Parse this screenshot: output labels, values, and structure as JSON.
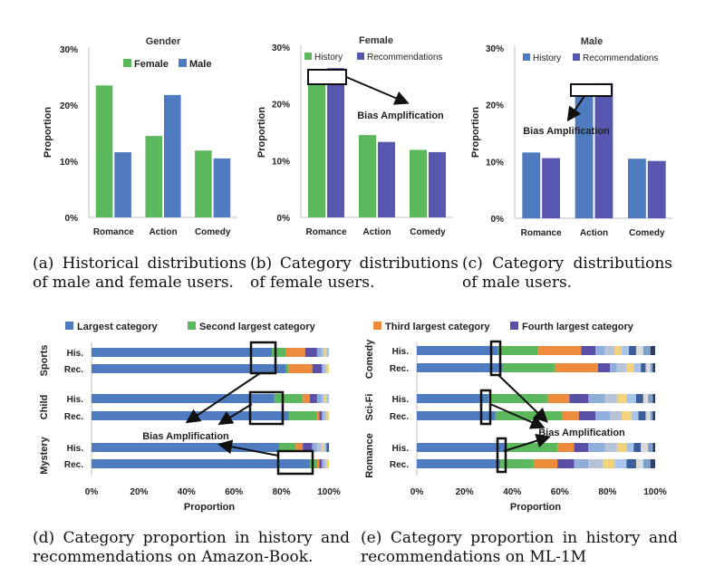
{
  "colors": {
    "female": "#5cb85c",
    "male": "#4f7cc0",
    "history": "#5cb85c",
    "recommendations": "#5857b0",
    "largest": "#4f7cc0",
    "second": "#5cb85c",
    "third": "#ed8a3c",
    "fourth": "#5a4fa6",
    "tail": [
      "#8faedc",
      "#b7c4d8",
      "#f2d27a",
      "#a8c4ea",
      "#3b5e9a",
      "#d9d9d9",
      "#7fa0c8",
      "#2f3f5f"
    ]
  },
  "captions": {
    "a": "(a) Historical distributions of male and female users.",
    "b": "(b) Category distributions of female users.",
    "c": "(c) Category distributions of male users.",
    "d": "(d) Category proportion in history and recommendations on Amazon-Book.",
    "e": "(e) Category proportion in history and recommendations on ML-1M"
  },
  "chart_data": [
    {
      "id": "a",
      "type": "bar",
      "title": "Gender",
      "ylabel": "Proportion",
      "ylim": [
        0,
        30
      ],
      "yticks": [
        "0%",
        "10%",
        "20%",
        "30%"
      ],
      "categories": [
        "Romance",
        "Action",
        "Comedy"
      ],
      "series": [
        {
          "name": "Female",
          "values": [
            23.5,
            14.5,
            11.9
          ]
        },
        {
          "name": "Male",
          "values": [
            11.6,
            21.8,
            10.5
          ]
        }
      ],
      "legend": "top-center"
    },
    {
      "id": "b",
      "type": "bar",
      "title": "Female",
      "ylabel": "Proportion",
      "ylim": [
        0,
        30
      ],
      "yticks": [
        "0%",
        "10%",
        "20%",
        "30%"
      ],
      "categories": [
        "Romance",
        "Action",
        "Comedy"
      ],
      "series": [
        {
          "name": "History",
          "values": [
            23.5,
            14.5,
            11.9
          ]
        },
        {
          "name": "Recommendations",
          "values": [
            26.3,
            13.3,
            11.5
          ]
        }
      ],
      "legend": "top",
      "annotation": "Bias Amplification"
    },
    {
      "id": "c",
      "type": "bar",
      "title": "Male",
      "ylabel": "Proportion",
      "ylim": [
        0,
        30
      ],
      "yticks": [
        "0%",
        "10%",
        "20%",
        "30%"
      ],
      "categories": [
        "Romance",
        "Action",
        "Comedy"
      ],
      "series": [
        {
          "name": "History",
          "values": [
            11.6,
            21.8,
            10.5
          ]
        },
        {
          "name": "Recommendations",
          "values": [
            10.6,
            23.8,
            10.1
          ]
        }
      ],
      "legend": "top",
      "annotation": "Bias Amplification"
    },
    {
      "id": "d",
      "type": "bar",
      "orientation": "horizontal-stacked",
      "xlabel": "Proportion",
      "xlim": [
        0,
        100
      ],
      "xticks": [
        "0%",
        "20%",
        "40%",
        "60%",
        "80%",
        "100%"
      ],
      "legend_entries": [
        "Largest category",
        "Second largest category"
      ],
      "groups": [
        {
          "name": "Sports",
          "rows": [
            {
              "label": "His.",
              "values": [
                76,
                6,
                8,
                5,
                2,
                1,
                1,
                1
              ]
            },
            {
              "label": "Rec.",
              "values": [
                82,
                1,
                10,
                4,
                1,
                1,
                1
              ]
            }
          ]
        },
        {
          "name": "Child",
          "rows": [
            {
              "label": "His.",
              "values": [
                77,
                12,
                3,
                3,
                2,
                1,
                1,
                1
              ]
            },
            {
              "label": "Rec.",
              "values": [
                83,
                12,
                1,
                1,
                1,
                1,
                1
              ]
            }
          ]
        },
        {
          "name": "Mystery",
          "rows": [
            {
              "label": "His.",
              "values": [
                79,
                7,
                3,
                4,
                2,
                2,
                1,
                1,
                1
              ]
            },
            {
              "label": "Rec.",
              "values": [
                92,
                3,
                1,
                1,
                1,
                1,
                1
              ]
            }
          ]
        }
      ],
      "annotation": "Bias Amplification"
    },
    {
      "id": "e",
      "type": "bar",
      "orientation": "horizontal-stacked",
      "xlabel": "Proportion",
      "xlim": [
        0,
        100
      ],
      "xticks": [
        "0%",
        "20%",
        "40%",
        "60%",
        "80%",
        "100%"
      ],
      "legend_entries": [
        "Third largest category",
        "Fourth largest category"
      ],
      "groups": [
        {
          "name": "Comedy",
          "rows": [
            {
              "label": "His.",
              "values": [
                34,
                17,
                18,
                6,
                4,
                4,
                3,
                3,
                3,
                3,
                3,
                2
              ]
            },
            {
              "label": "Rec.",
              "values": [
                36,
                22,
                18,
                5,
                3,
                4,
                3,
                3,
                2,
                2,
                1,
                1
              ]
            }
          ]
        },
        {
          "name": "Sci-Fi",
          "rows": [
            {
              "label": "His.",
              "values": [
                30,
                25,
                9,
                8,
                7,
                5,
                4,
                4,
                3,
                2,
                2,
                1
              ]
            },
            {
              "label": "Rec.",
              "values": [
                33,
                28,
                7,
                7,
                6,
                5,
                4,
                3,
                3,
                2,
                1,
                1
              ]
            }
          ]
        },
        {
          "name": "Romance",
          "rows": [
            {
              "label": "His.",
              "values": [
                37,
                22,
                7,
                6,
                7,
                5,
                4,
                3,
                3,
                3,
                2,
                1
              ]
            },
            {
              "label": "Rec.",
              "values": [
                35,
                14,
                10,
                7,
                6,
                6,
                5,
                5,
                4,
                3,
                3,
                2
              ]
            }
          ]
        }
      ],
      "annotation": "Bias Amplification"
    }
  ]
}
